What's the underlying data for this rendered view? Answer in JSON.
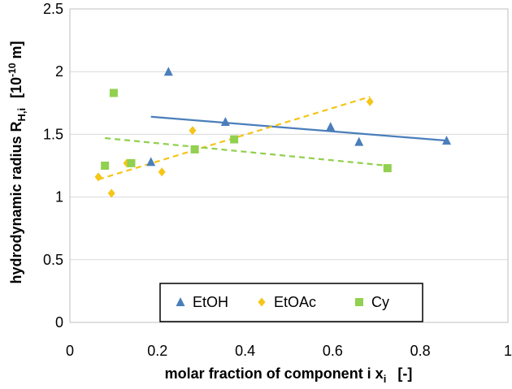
{
  "chart_data": {
    "type": "scatter",
    "title": "",
    "xlabel": "molar fraction of component i x",
    "xlabel_sub": "i",
    "xlabel_unit": "[-]",
    "ylabel": "hydrodynamic radius R",
    "ylabel_sub": "H,i",
    "ylabel_unit": "[10",
    "ylabel_unit_exp": "-10",
    "ylabel_unit_tail": " m]",
    "xlim": [
      0,
      1
    ],
    "ylim": [
      0,
      2.5
    ],
    "xticks": [
      0,
      0.2,
      0.4,
      0.6,
      0.8,
      1
    ],
    "xtick_labels": [
      "0",
      "0.2",
      "0.4",
      "0.6",
      "0.8",
      "1"
    ],
    "yticks": [
      0,
      0.5,
      1,
      1.5,
      2,
      2.5
    ],
    "ytick_labels": [
      "0",
      "0.5",
      "1",
      "1.5",
      "2",
      "2.5"
    ],
    "grid": "horizontal",
    "legend_position": "bottom-center",
    "series": [
      {
        "name": "EtOH",
        "marker": "triangle",
        "color": "#4a7ebb",
        "points": [
          [
            0.185,
            1.28
          ],
          [
            0.225,
            2.0
          ],
          [
            0.355,
            1.6
          ],
          [
            0.595,
            1.56
          ],
          [
            0.66,
            1.44
          ],
          [
            0.86,
            1.45
          ]
        ],
        "trend": {
          "style": "solid",
          "x": [
            0.185,
            0.86
          ],
          "y": [
            1.64,
            1.45
          ]
        }
      },
      {
        "name": "EtOAc",
        "marker": "diamond",
        "color": "#f5c518",
        "points": [
          [
            0.065,
            1.16
          ],
          [
            0.095,
            1.03
          ],
          [
            0.13,
            1.27
          ],
          [
            0.21,
            1.2
          ],
          [
            0.28,
            1.53
          ],
          [
            0.685,
            1.76
          ]
        ],
        "trend": {
          "style": "dashed",
          "x": [
            0.065,
            0.685
          ],
          "y": [
            1.14,
            1.8
          ]
        }
      },
      {
        "name": "Cy",
        "marker": "square",
        "color": "#92d050",
        "points": [
          [
            0.08,
            1.25
          ],
          [
            0.1,
            1.83
          ],
          [
            0.14,
            1.27
          ],
          [
            0.285,
            1.38
          ],
          [
            0.375,
            1.46
          ],
          [
            0.725,
            1.23
          ]
        ],
        "trend": {
          "style": "dashed",
          "x": [
            0.08,
            0.725
          ],
          "y": [
            1.47,
            1.25
          ]
        }
      }
    ]
  }
}
